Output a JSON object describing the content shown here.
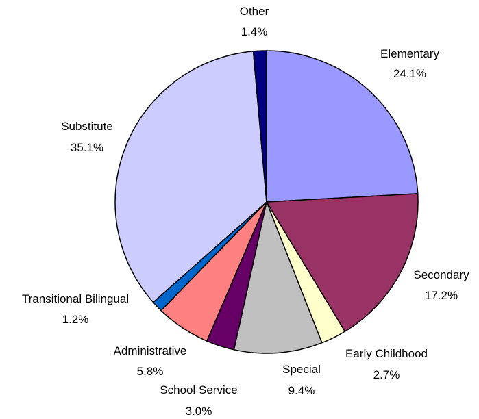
{
  "chart_data": {
    "type": "pie",
    "title": "",
    "slices": [
      {
        "label": "Elementary",
        "value": 24.1,
        "value_label": "24.1%",
        "color": "#9999FF"
      },
      {
        "label": "Secondary",
        "value": 17.2,
        "value_label": "17.2%",
        "color": "#993366"
      },
      {
        "label": "Early Childhood",
        "value": 2.7,
        "value_label": "2.7%",
        "color": "#FFFFCC"
      },
      {
        "label": "Special",
        "value": 9.4,
        "value_label": "9.4%",
        "color": "#C0C0C0"
      },
      {
        "label": "School Service",
        "value": 3.0,
        "value_label": "3.0%",
        "color": "#660066"
      },
      {
        "label": "Administrative",
        "value": 5.8,
        "value_label": "5.8%",
        "color": "#FF8080"
      },
      {
        "label": "Transitional Bilingual",
        "value": 1.2,
        "value_label": "1.2%",
        "color": "#0066CC"
      },
      {
        "label": "Substitute",
        "value": 35.1,
        "value_label": "35.1%",
        "color": "#CCCCFF"
      },
      {
        "label": "Other",
        "value": 1.4,
        "value_label": "1.4%",
        "color": "#000080"
      }
    ],
    "start_angle": "12 o'clock",
    "direction": "clockwise",
    "legend": "none"
  }
}
